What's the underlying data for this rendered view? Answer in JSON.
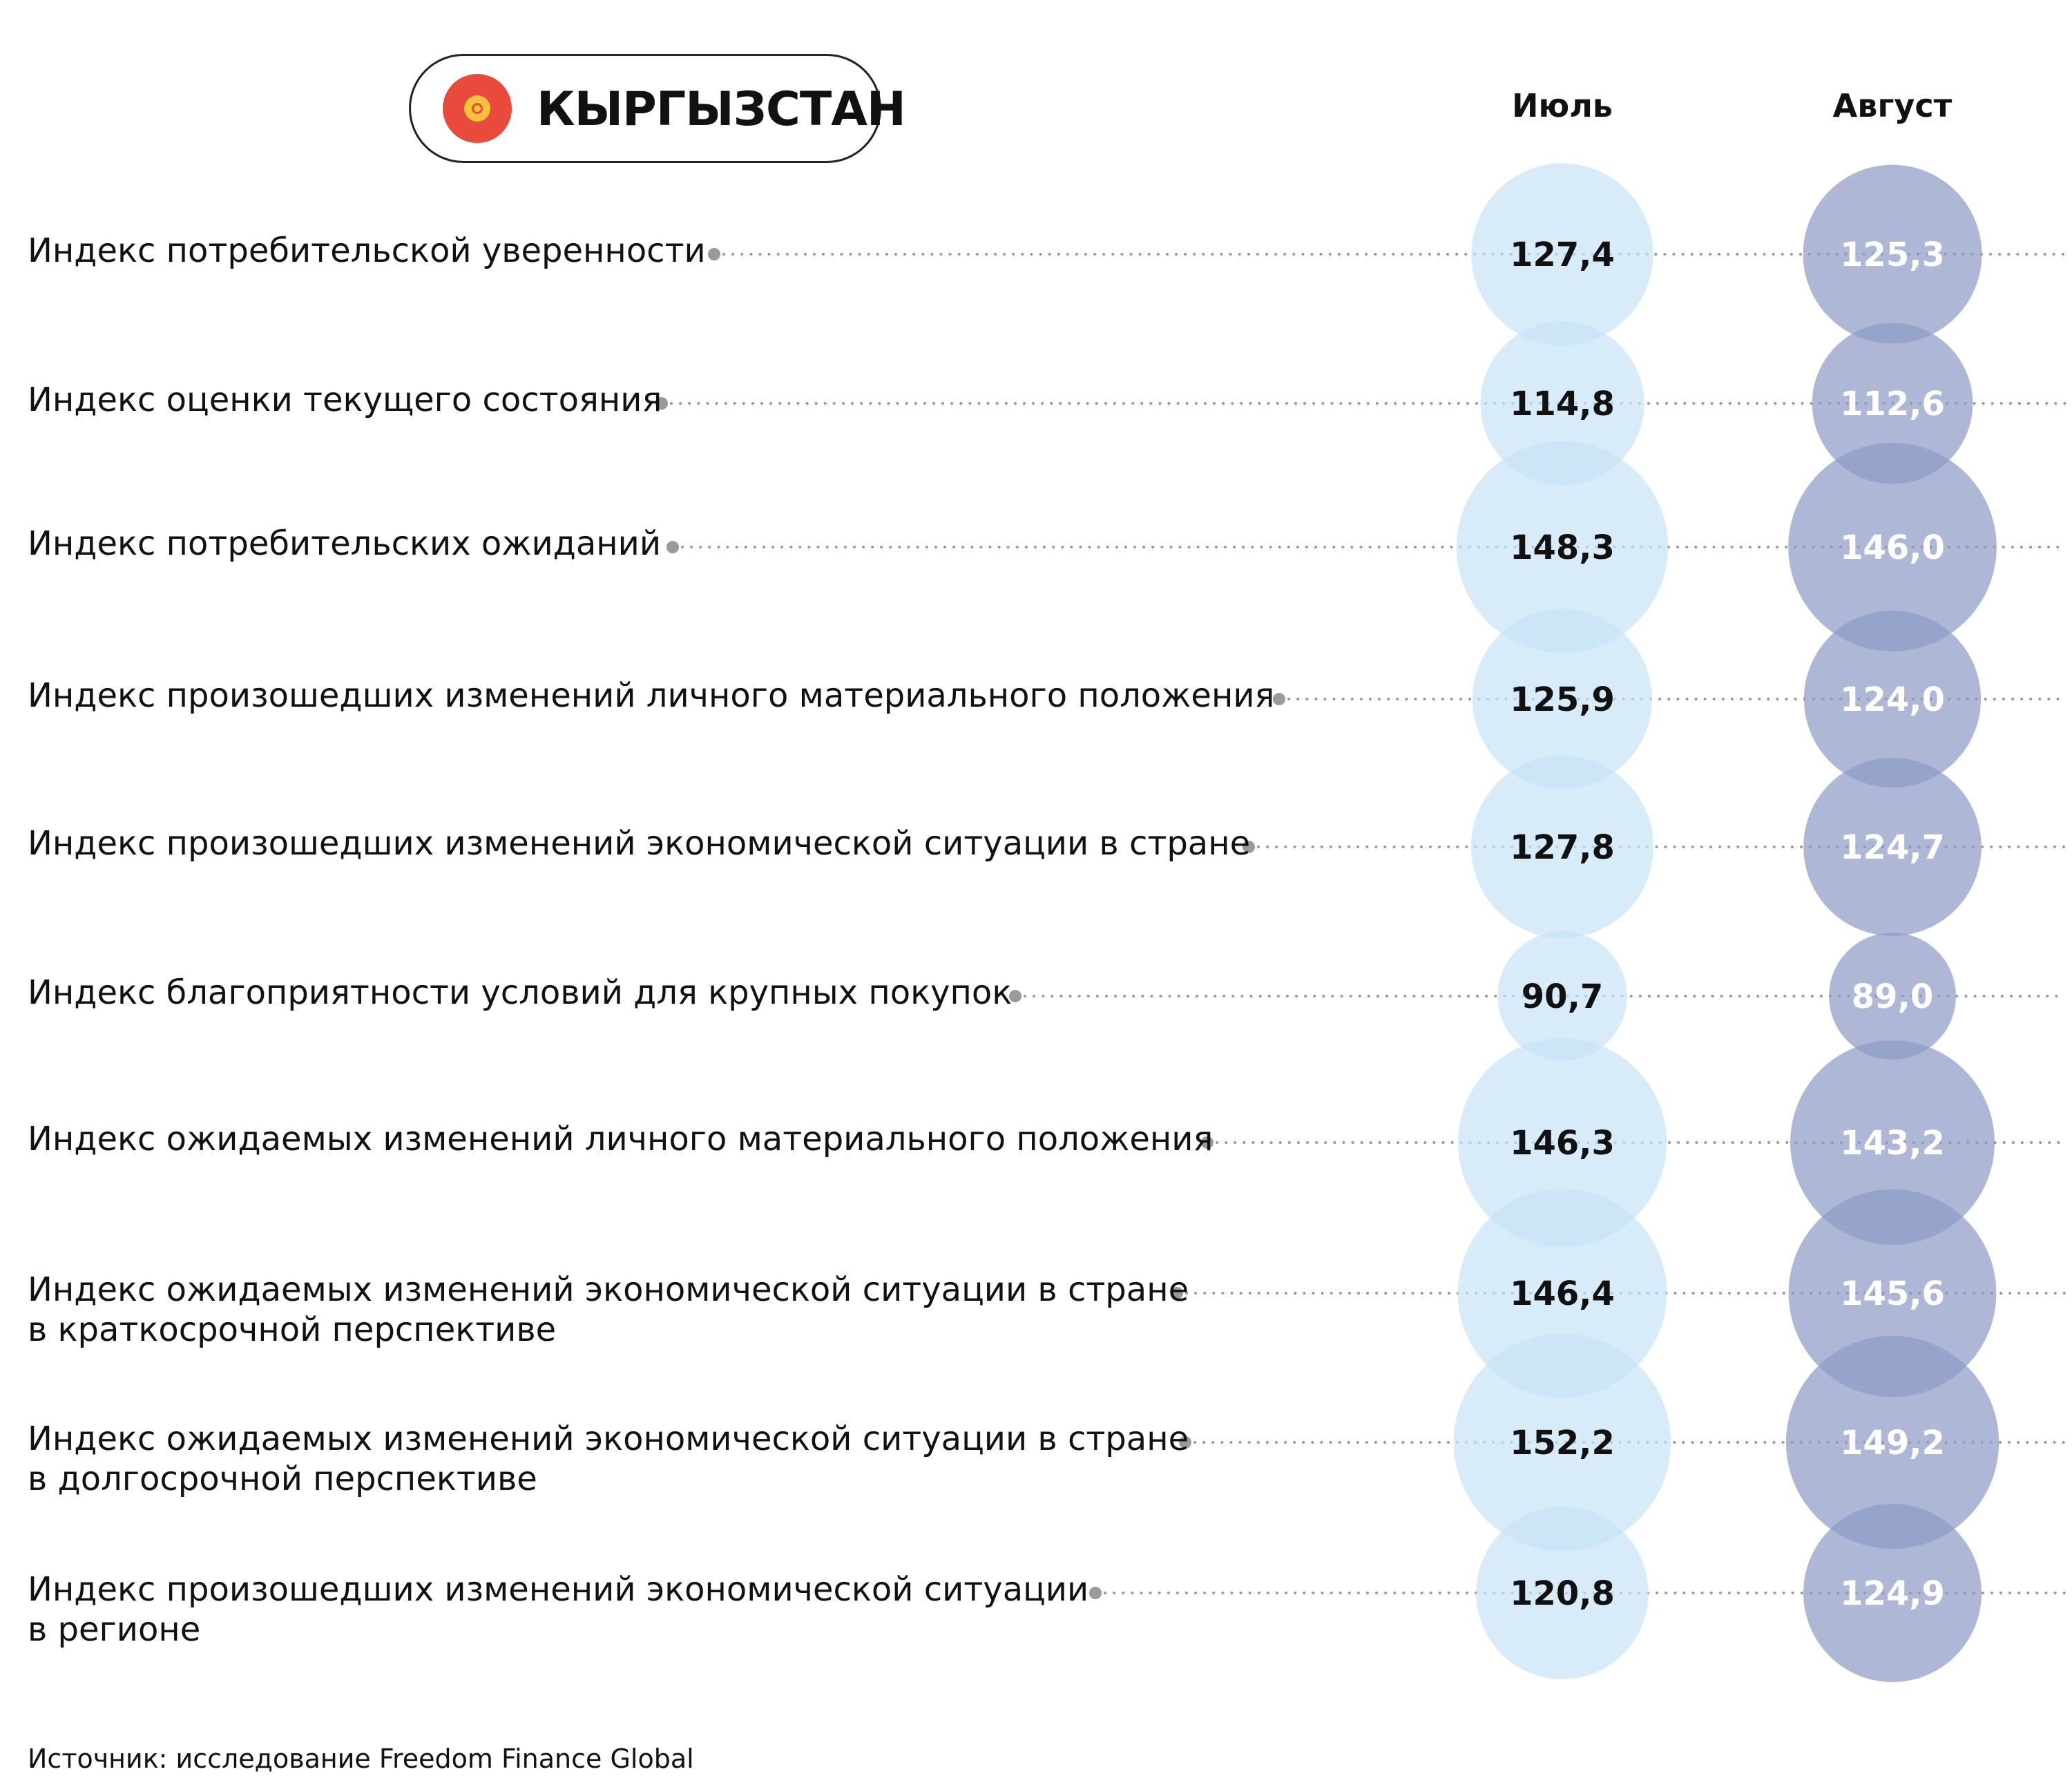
{
  "header": {
    "country": "КЫРГЫЗСТАН",
    "flag_icon": "kyrgyzstan-flag-icon",
    "flag_color": "#e84a3c",
    "flag_sun_color": "#f6c23b"
  },
  "source": "Источник: исследование Freedom Finance Global",
  "colors": {
    "july": "#c8e3f6",
    "august": "#8c9ac4",
    "july_text": "#111111",
    "august_text": "#ffffff",
    "dots": "#9a9a9a"
  },
  "chart_data": {
    "type": "bubble",
    "categories": [
      [
        "Индекс потребительской уверенности"
      ],
      [
        "Индекс оценки текущего состояния"
      ],
      [
        "Индекс потребительских ожиданий"
      ],
      [
        "Индекс произошедших изменений личного материального положения"
      ],
      [
        "Индекс произошедших изменений экономической ситуации в стране"
      ],
      [
        "Индекс благоприятности условий для крупных покупок"
      ],
      [
        "Индекс ожидаемых изменений личного материального положения"
      ],
      [
        "Индекс ожидаемых изменений экономической ситуации в стране",
        "в краткосрочной перспективе"
      ],
      [
        "Индекс ожидаемых изменений экономической ситуации в стране",
        "в долгосрочной перспективе"
      ],
      [
        "Индекс произошедших изменений экономической ситуации",
        "в регионе"
      ]
    ],
    "series": [
      {
        "name": "Июль",
        "values": [
          127.4,
          114.8,
          148.3,
          125.9,
          127.8,
          90.7,
          146.3,
          146.4,
          152.2,
          120.8
        ],
        "labels": [
          "127,4",
          "114,8",
          "148,3",
          "125,9",
          "127,8",
          "90,7",
          "146,3",
          "146,4",
          "152,2",
          "120,8"
        ]
      },
      {
        "name": "Август",
        "values": [
          125.3,
          112.6,
          146.0,
          124.0,
          124.7,
          89.0,
          143.2,
          145.6,
          149.2,
          124.9
        ],
        "labels": [
          "125,3",
          "112,6",
          "146,0",
          "124,0",
          "124,7",
          "89,0",
          "143,2",
          "145,6",
          "149,2",
          "124,9"
        ]
      }
    ]
  }
}
